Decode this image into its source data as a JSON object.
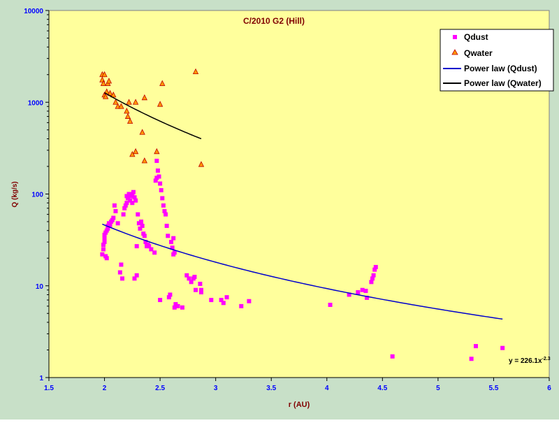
{
  "chart_data": {
    "type": "scatter",
    "title": "C/2010 G2 (Hill)",
    "xlabel": "r (AU)",
    "ylabel": "Q (kg/s)",
    "xlim": [
      1.5,
      6
    ],
    "ylim": [
      1,
      10000
    ],
    "yscale": "log",
    "xticks": [
      "1.5",
      "2",
      "2.5",
      "3",
      "3.5",
      "4",
      "4.5",
      "5",
      "5.5",
      "6"
    ],
    "yticks": [
      "1",
      "10",
      "100",
      "1000",
      "10000"
    ],
    "grid": false,
    "legend_position": "top-right",
    "trendline_equation": "y = 226.1x",
    "trendline_exponent": "-2.3",
    "colors": {
      "figure_background": "#c8e0c8",
      "plot_background": "#ffff9c",
      "title": "#800000",
      "axis_label": "#800000",
      "tick_label": "#0000ff",
      "qdust": "#ff00ff",
      "qwater_fill": "#ff9900",
      "qwater_edge": "#c00000",
      "fit_dust": "#0000cc",
      "fit_water": "#000000"
    },
    "series": [
      {
        "name": "Qdust",
        "marker": "square",
        "points": [
          [
            1.98,
            22
          ],
          [
            1.99,
            25
          ],
          [
            1.99,
            28
          ],
          [
            2.0,
            30
          ],
          [
            2.0,
            33
          ],
          [
            2.0,
            36
          ],
          [
            2.01,
            21
          ],
          [
            2.01,
            38
          ],
          [
            2.02,
            20
          ],
          [
            2.02,
            40
          ],
          [
            2.03,
            42
          ],
          [
            2.03,
            45
          ],
          [
            2.04,
            48
          ],
          [
            2.05,
            46
          ],
          [
            2.06,
            50
          ],
          [
            2.07,
            52
          ],
          [
            2.08,
            55
          ],
          [
            2.09,
            75
          ],
          [
            2.1,
            65
          ],
          [
            2.12,
            48
          ],
          [
            2.14,
            14
          ],
          [
            2.15,
            17
          ],
          [
            2.16,
            12
          ],
          [
            2.17,
            60
          ],
          [
            2.18,
            70
          ],
          [
            2.19,
            75
          ],
          [
            2.2,
            80
          ],
          [
            2.2,
            95
          ],
          [
            2.21,
            90
          ],
          [
            2.22,
            100
          ],
          [
            2.23,
            85
          ],
          [
            2.24,
            95
          ],
          [
            2.25,
            80
          ],
          [
            2.25,
            100
          ],
          [
            2.26,
            105
          ],
          [
            2.27,
            92
          ],
          [
            2.27,
            12
          ],
          [
            2.28,
            85
          ],
          [
            2.29,
            13
          ],
          [
            2.29,
            27
          ],
          [
            2.3,
            60
          ],
          [
            2.31,
            48
          ],
          [
            2.32,
            42
          ],
          [
            2.33,
            50
          ],
          [
            2.34,
            45
          ],
          [
            2.35,
            37
          ],
          [
            2.36,
            35
          ],
          [
            2.37,
            30
          ],
          [
            2.38,
            27
          ],
          [
            2.39,
            28
          ],
          [
            2.4,
            27
          ],
          [
            2.42,
            25
          ],
          [
            2.45,
            23
          ],
          [
            2.46,
            140
          ],
          [
            2.47,
            150
          ],
          [
            2.47,
            230
          ],
          [
            2.48,
            180
          ],
          [
            2.49,
            155
          ],
          [
            2.5,
            130
          ],
          [
            2.5,
            7
          ],
          [
            2.51,
            110
          ],
          [
            2.52,
            90
          ],
          [
            2.53,
            75
          ],
          [
            2.54,
            65
          ],
          [
            2.55,
            60
          ],
          [
            2.56,
            45
          ],
          [
            2.57,
            35
          ],
          [
            2.58,
            7.5
          ],
          [
            2.59,
            8
          ],
          [
            2.6,
            30
          ],
          [
            2.61,
            26
          ],
          [
            2.62,
            22
          ],
          [
            2.62,
            33
          ],
          [
            2.63,
            23
          ],
          [
            2.63,
            5.8
          ],
          [
            2.64,
            6.3
          ],
          [
            2.66,
            6
          ],
          [
            2.7,
            5.8
          ],
          [
            2.74,
            13
          ],
          [
            2.76,
            12
          ],
          [
            2.78,
            11
          ],
          [
            2.8,
            12
          ],
          [
            2.81,
            12.5
          ],
          [
            2.82,
            9
          ],
          [
            2.86,
            10.5
          ],
          [
            2.87,
            9
          ],
          [
            2.87,
            8.5
          ],
          [
            2.96,
            7
          ],
          [
            3.05,
            7
          ],
          [
            3.07,
            6.5
          ],
          [
            3.1,
            7.5
          ],
          [
            3.23,
            6
          ],
          [
            3.3,
            6.8
          ],
          [
            4.03,
            6.2
          ],
          [
            4.2,
            8
          ],
          [
            4.28,
            8.5
          ],
          [
            4.32,
            9
          ],
          [
            4.35,
            8.8
          ],
          [
            4.36,
            7.4
          ],
          [
            4.4,
            11
          ],
          [
            4.41,
            12
          ],
          [
            4.42,
            13
          ],
          [
            4.43,
            15
          ],
          [
            4.44,
            16
          ],
          [
            4.59,
            1.7
          ],
          [
            5.3,
            1.6
          ],
          [
            5.34,
            2.2
          ],
          [
            5.58,
            2.1
          ]
        ]
      },
      {
        "name": "Qwater",
        "marker": "triangle",
        "points": [
          [
            1.98,
            1750
          ],
          [
            1.98,
            2000
          ],
          [
            1.99,
            1600
          ],
          [
            2.0,
            2000
          ],
          [
            2.0,
            1200
          ],
          [
            2.01,
            1150
          ],
          [
            2.02,
            1300
          ],
          [
            2.03,
            1600
          ],
          [
            2.04,
            1700
          ],
          [
            2.05,
            1250
          ],
          [
            2.08,
            1200
          ],
          [
            2.1,
            1000
          ],
          [
            2.12,
            900
          ],
          [
            2.15,
            900
          ],
          [
            2.2,
            800
          ],
          [
            2.21,
            700
          ],
          [
            2.23,
            620
          ],
          [
            2.22,
            1000
          ],
          [
            2.25,
            270
          ],
          [
            2.28,
            290
          ],
          [
            2.28,
            1000
          ],
          [
            2.34,
            470
          ],
          [
            2.36,
            230
          ],
          [
            2.36,
            1120
          ],
          [
            2.47,
            290
          ],
          [
            2.5,
            950
          ],
          [
            2.52,
            1600
          ],
          [
            2.82,
            2150
          ],
          [
            2.87,
            210
          ]
        ]
      },
      {
        "name": "Power law (Qdust)",
        "type": "power-fit",
        "coefficient": 226.1,
        "exponent": -2.3,
        "x_range": [
          1.98,
          5.58
        ]
      },
      {
        "name": "Power law (Qwater)",
        "type": "power-fit",
        "endpoints": [
          [
            2.0,
            1270
          ],
          [
            2.87,
            400
          ]
        ]
      }
    ]
  }
}
